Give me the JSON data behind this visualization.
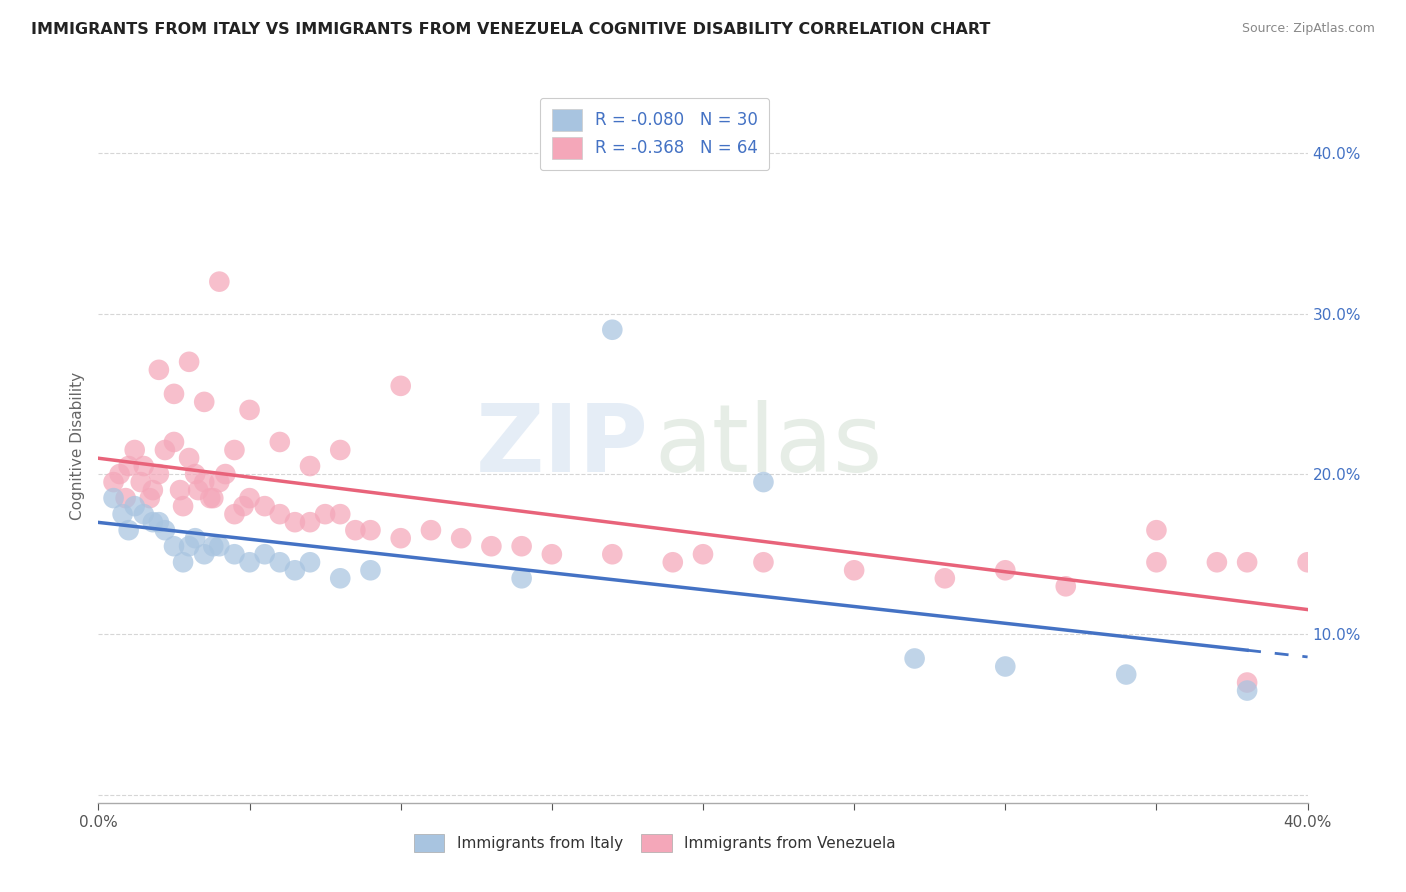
{
  "title": "IMMIGRANTS FROM ITALY VS IMMIGRANTS FROM VENEZUELA COGNITIVE DISABILITY CORRELATION CHART",
  "source": "Source: ZipAtlas.com",
  "ylabel": "Cognitive Disability",
  "y_tick_values": [
    0.0,
    0.1,
    0.2,
    0.3,
    0.4
  ],
  "x_range": [
    0.0,
    0.4
  ],
  "y_range": [
    -0.005,
    0.44
  ],
  "r_italy": -0.08,
  "n_italy": 30,
  "r_venezuela": -0.368,
  "n_venezuela": 64,
  "color_italy": "#a8c4e0",
  "color_venezuela": "#f4a7b9",
  "line_color_italy": "#4472c4",
  "line_color_venezuela": "#e8637a",
  "legend_label_italy": "Immigrants from Italy",
  "legend_label_venezuela": "Immigrants from Venezuela",
  "watermark_zip": "ZIP",
  "watermark_atlas": "atlas",
  "italy_x": [
    0.005,
    0.008,
    0.01,
    0.012,
    0.015,
    0.018,
    0.02,
    0.022,
    0.025,
    0.028,
    0.03,
    0.032,
    0.035,
    0.038,
    0.04,
    0.045,
    0.05,
    0.055,
    0.06,
    0.065,
    0.07,
    0.08,
    0.09,
    0.14,
    0.17,
    0.22,
    0.27,
    0.3,
    0.34,
    0.38
  ],
  "italy_y": [
    0.185,
    0.175,
    0.165,
    0.18,
    0.175,
    0.17,
    0.17,
    0.165,
    0.155,
    0.145,
    0.155,
    0.16,
    0.15,
    0.155,
    0.155,
    0.15,
    0.145,
    0.15,
    0.145,
    0.14,
    0.145,
    0.135,
    0.14,
    0.135,
    0.29,
    0.195,
    0.085,
    0.08,
    0.075,
    0.065
  ],
  "venezuela_x": [
    0.005,
    0.007,
    0.009,
    0.01,
    0.012,
    0.014,
    0.015,
    0.017,
    0.018,
    0.02,
    0.022,
    0.025,
    0.027,
    0.028,
    0.03,
    0.032,
    0.033,
    0.035,
    0.037,
    0.038,
    0.04,
    0.042,
    0.045,
    0.048,
    0.05,
    0.055,
    0.06,
    0.065,
    0.07,
    0.075,
    0.08,
    0.085,
    0.09,
    0.1,
    0.11,
    0.12,
    0.13,
    0.14,
    0.15,
    0.17,
    0.19,
    0.2,
    0.22,
    0.25,
    0.28,
    0.3,
    0.32,
    0.35,
    0.37,
    0.38,
    0.4,
    0.02,
    0.025,
    0.03,
    0.035,
    0.04,
    0.045,
    0.05,
    0.06,
    0.07,
    0.08,
    0.1,
    0.35,
    0.38
  ],
  "venezuela_y": [
    0.195,
    0.2,
    0.185,
    0.205,
    0.215,
    0.195,
    0.205,
    0.185,
    0.19,
    0.2,
    0.215,
    0.22,
    0.19,
    0.18,
    0.21,
    0.2,
    0.19,
    0.195,
    0.185,
    0.185,
    0.195,
    0.2,
    0.175,
    0.18,
    0.185,
    0.18,
    0.175,
    0.17,
    0.17,
    0.175,
    0.175,
    0.165,
    0.165,
    0.16,
    0.165,
    0.16,
    0.155,
    0.155,
    0.15,
    0.15,
    0.145,
    0.15,
    0.145,
    0.14,
    0.135,
    0.14,
    0.13,
    0.145,
    0.145,
    0.145,
    0.145,
    0.265,
    0.25,
    0.27,
    0.245,
    0.32,
    0.215,
    0.24,
    0.22,
    0.205,
    0.215,
    0.255,
    0.165,
    0.07
  ]
}
